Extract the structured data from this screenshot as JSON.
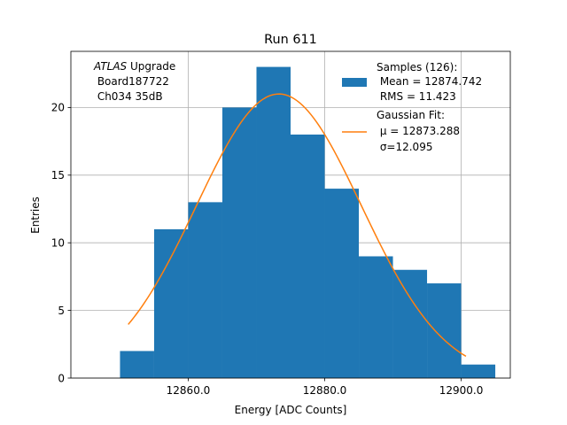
{
  "chart_data": {
    "type": "bar",
    "title": "Run 611",
    "xlabel": "Energy [ADC Counts]",
    "ylabel": "Entries",
    "xlim": [
      12842.8,
      12907.2
    ],
    "ylim": [
      0,
      24.15
    ],
    "x_ticks": [
      12860.0,
      12880.0,
      12900.0
    ],
    "x_tick_labels": [
      "12860.0",
      "12880.0",
      "12900.0"
    ],
    "y_ticks": [
      0,
      5,
      10,
      15,
      20
    ],
    "y_tick_labels": [
      "0",
      "5",
      "10",
      "15",
      "20"
    ],
    "grid": true,
    "bin_edges": [
      12850,
      12855,
      12860,
      12865,
      12870,
      12875,
      12880,
      12885,
      12890,
      12895,
      12900,
      12905
    ],
    "counts": [
      2,
      11,
      13,
      20,
      23,
      18,
      14,
      9,
      8,
      7,
      1
    ],
    "series": [
      {
        "name": "Samples (126):",
        "stats": [
          " Mean = 12874.742",
          " RMS = 11.423"
        ],
        "color": "#1f77b4"
      },
      {
        "name": "Gaussian Fit:",
        "fit_label_mu": " μ = 12873.288",
        "fit_label_sigma": " σ=12.095",
        "color": "#ff7f0e",
        "mu": 12873.288,
        "sigma": 12.095,
        "amplitude": 21.0,
        "x_range": [
          12851.2,
          12900.7
        ]
      }
    ],
    "annotation": {
      "line1_italic": "ATLAS",
      "line1_rest": " Upgrade",
      "line2": " Board187722",
      "line3": " Ch034 35dB"
    },
    "legend_position": "top-right"
  }
}
